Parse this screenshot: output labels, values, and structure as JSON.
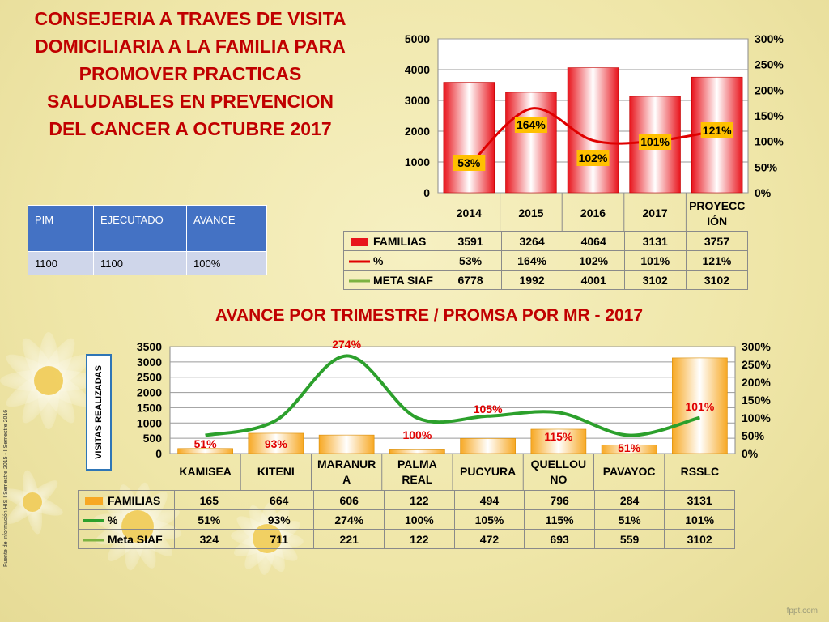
{
  "title": "CONSEJERIA A TRAVES DE VISITA DOMICILIARIA A LA FAMILIA PARA PROMOVER PRACTICAS SALUDABLES EN PREVENCION DEL CANCER A OCTUBRE 2017",
  "pim_table": {
    "headers": [
      "PIM",
      "EJECUTADO",
      "AVANCE"
    ],
    "row": [
      "1100",
      "1100",
      "100%"
    ]
  },
  "section_title": "AVANCE POR TRIMESTRE / PROMSA POR MR - 2017",
  "y_axis_label": "VISITAS REALIZADAS",
  "source_note": "Fuente de información HIS I Semestre 2015 - I Semestre 2016",
  "watermark": "fppt.com",
  "colors": {
    "title_red": "#c00000",
    "header_blue": "#4472c4",
    "line_red": "#e00000",
    "line_green": "#2ca02c",
    "label_yellow": "#ffc000"
  },
  "chart_data": [
    {
      "type": "bar",
      "categories": [
        "2014",
        "2015",
        "2016",
        "2017",
        "PROYECCIÓN"
      ],
      "series": [
        {
          "name": "FAMILIAS",
          "values": [
            3591,
            3264,
            4064,
            3131,
            3757
          ],
          "axis": "left"
        },
        {
          "name": "%",
          "values": [
            53,
            164,
            102,
            101,
            121
          ],
          "axis": "right",
          "kind": "line"
        },
        {
          "name": "META SIAF",
          "values": [
            6778,
            1992,
            4001,
            3102,
            3102
          ],
          "kind": "table-only"
        }
      ],
      "pct_labels": [
        "53%",
        "164%",
        "102%",
        "101%",
        "121%"
      ],
      "table_rows": [
        {
          "label": "FAMILIAS",
          "cells": [
            "3591",
            "3264",
            "4064",
            "3131",
            "3757"
          ]
        },
        {
          "label": "%",
          "cells": [
            "53%",
            "164%",
            "102%",
            "101%",
            "121%"
          ]
        },
        {
          "label": "META SIAF",
          "cells": [
            "6778",
            "1992",
            "4001",
            "3102",
            "3102"
          ]
        }
      ],
      "cat_labels": [
        [
          "2014"
        ],
        [
          "2015"
        ],
        [
          "2016"
        ],
        [
          "2017"
        ],
        [
          "PROYECC",
          "IÓN"
        ]
      ],
      "ylim": [
        0,
        5000
      ],
      "yticks": [
        "0",
        "1000",
        "2000",
        "3000",
        "4000",
        "5000"
      ],
      "y2lim": [
        0,
        300
      ],
      "y2ticks": [
        "0%",
        "50%",
        "100%",
        "150%",
        "200%",
        "250%",
        "300%"
      ],
      "grid": true
    },
    {
      "type": "bar",
      "categories": [
        "KAMISEA",
        "KITENI",
        "MARANURA",
        "PALMA REAL",
        "PUCYURA",
        "QUELLOUNO",
        "PAVAYOC",
        "RSSLC"
      ],
      "series": [
        {
          "name": "FAMILIAS",
          "values": [
            165,
            664,
            606,
            122,
            494,
            796,
            284,
            3131
          ],
          "axis": "left"
        },
        {
          "name": "%",
          "values": [
            51,
            93,
            274,
            100,
            105,
            115,
            51,
            101
          ],
          "axis": "right",
          "kind": "line"
        },
        {
          "name": "Meta SIAF",
          "values": [
            324,
            711,
            221,
            122,
            472,
            693,
            559,
            3102
          ],
          "kind": "table-only"
        }
      ],
      "pct_labels": [
        "51%",
        "93%",
        "274%",
        "100%",
        "105%",
        "115%",
        "51%",
        "101%"
      ],
      "table_rows": [
        {
          "label": "FAMILIAS",
          "cells": [
            "165",
            "664",
            "606",
            "122",
            "494",
            "796",
            "284",
            "3131"
          ]
        },
        {
          "label": "%",
          "cells": [
            "51%",
            "93%",
            "274%",
            "100%",
            "105%",
            "115%",
            "51%",
            "101%"
          ]
        },
        {
          "label": "Meta SIAF",
          "cells": [
            "324",
            "711",
            "221",
            "122",
            "472",
            "693",
            "559",
            "3102"
          ]
        }
      ],
      "cat_labels": [
        [
          "KAMISEA"
        ],
        [
          "KITENI"
        ],
        [
          "MARANUR",
          "A"
        ],
        [
          "PALMA",
          "REAL"
        ],
        [
          "PUCYURA"
        ],
        [
          "QUELLOU",
          "NO"
        ],
        [
          "PAVAYOC"
        ],
        [
          "RSSLC"
        ]
      ],
      "ylim": [
        0,
        3500
      ],
      "yticks": [
        "0",
        "500",
        "1000",
        "1500",
        "2000",
        "2500",
        "3000",
        "3500"
      ],
      "y2lim": [
        0,
        300
      ],
      "y2ticks": [
        "0%",
        "50%",
        "100%",
        "150%",
        "200%",
        "250%",
        "300%"
      ],
      "grid": true
    }
  ]
}
